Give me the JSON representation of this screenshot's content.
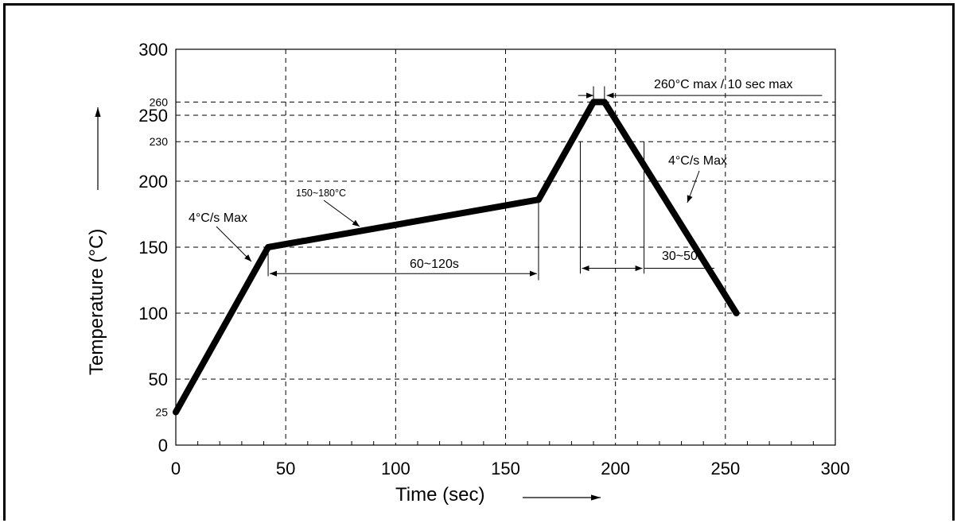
{
  "chart_data": {
    "type": "line",
    "xlabel": "Time (sec)",
    "ylabel": "Temperature (°C)",
    "xlim": [
      0,
      300
    ],
    "ylim": [
      0,
      300
    ],
    "x_ticks": [
      "0",
      "50",
      "100",
      "150",
      "200",
      "250",
      "300"
    ],
    "y_ticks": [
      "0",
      "50",
      "100",
      "150",
      "200",
      "250",
      "300"
    ],
    "y_extra_ticks": [
      "25",
      "230",
      "260"
    ],
    "grid": true,
    "series": [
      {
        "x": [
          0,
          42,
          165,
          190,
          195,
          255
        ],
        "y": [
          25,
          150,
          186,
          260,
          260,
          100
        ]
      }
    ],
    "annotations": {
      "ramp_up": "4°C/s Max",
      "soak_temp": "150~180°C",
      "soak_time": "60~120s",
      "peak": "260°C max / 10 sec max",
      "ramp_down": "4°C/s Max",
      "time_above": "30~50s"
    },
    "colors": {
      "line": "#000000",
      "grid": "#000000"
    }
  }
}
